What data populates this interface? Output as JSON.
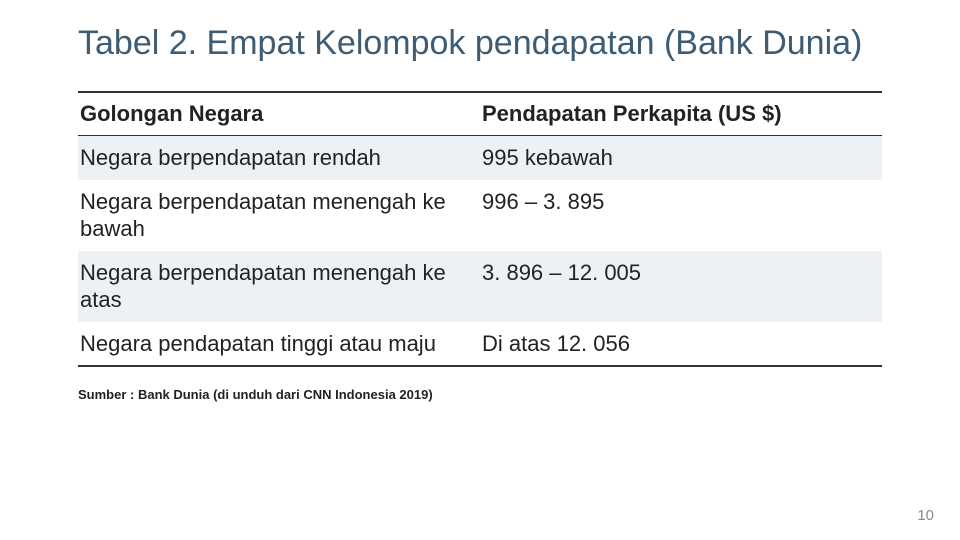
{
  "title": "Tabel 2. Empat Kelompok pendapatan (Bank Dunia)",
  "table": {
    "type": "table",
    "columns": [
      "Golongan Negara",
      "Pendapatan Perkapita (US $)"
    ],
    "column_widths_pct": [
      50,
      50
    ],
    "rows": [
      [
        "Negara berpendapatan rendah",
        "995 kebawah"
      ],
      [
        "Negara berpendapatan menengah ke bawah",
        "996 – 3. 895"
      ],
      [
        "Negara berpendapatan menengah ke atas",
        "3. 896 – 12. 005"
      ],
      [
        "Negara pendapatan tinggi atau maju",
        "Di atas 12. 056"
      ]
    ],
    "header_font_weight": 700,
    "body_font_size_pt": 16,
    "header_border_top_color": "#333333",
    "header_border_bottom_color": "#333333",
    "footer_border_color": "#333333",
    "row_stripe_colors": [
      "#ecf1f6",
      "#ffffff"
    ],
    "text_color": "#222222"
  },
  "source_note": "Sumber : Bank Dunia (di unduh dari CNN Indonesia 2019)",
  "page_number": "10",
  "colors": {
    "title_color": "#3e5c73",
    "background": "#ffffff",
    "page_number_color": "#8a8a8a"
  }
}
